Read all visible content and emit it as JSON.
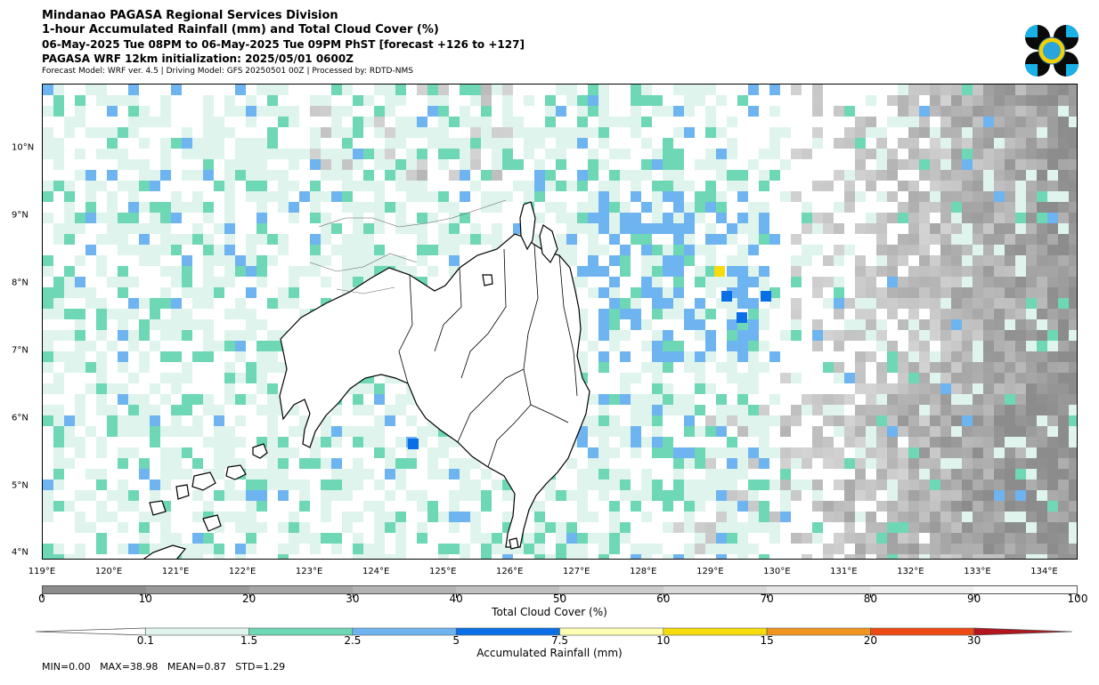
{
  "header": {
    "line1": "Mindanao PAGASA Regional Services Division",
    "line2": "1-hour Accumulated Rainfall (mm) and Total Cloud Cover (%)",
    "line3": "06-May-2025 Tue 08PM to 06-May-2025 Tue 09PM PhST [forecast +126 to +127]",
    "line4": "PAGASA WRF 12km initialization: 2025/05/01 0600Z",
    "line5": "Forecast Model: WRF ver. 4.5 | Driving Model: GFS 20250501 00Z | Processed by: RDTD-NMS"
  },
  "logo": {
    "name": "PAGASA-logo"
  },
  "map": {
    "lon_labels": [
      "119°E",
      "120°E",
      "121°E",
      "122°E",
      "123°E",
      "124°E",
      "125°E",
      "126°E",
      "127°E",
      "128°E",
      "129°E",
      "130°E",
      "131°E",
      "132°E",
      "133°E",
      "134°E"
    ],
    "lat_labels": [
      "10°N",
      "9°N",
      "8°N",
      "7°N",
      "6°N",
      "5°N",
      "4°N"
    ],
    "lon_range": [
      119.0,
      134.5
    ],
    "lat_range": [
      3.9,
      10.95
    ]
  },
  "cloud_cover": {
    "title": "Total Cloud Cover (%)",
    "ticks": [
      "0",
      "10",
      "20",
      "30",
      "40",
      "50",
      "60",
      "70",
      "80",
      "90",
      "100"
    ],
    "colors": [
      "#8c8c8c",
      "#999999",
      "#a6a6a6",
      "#b3b3b3",
      "#bfbfbf",
      "#cccccc",
      "#d9d9d9",
      "#e6e6e6",
      "#f0f0f0",
      "#fafafa"
    ]
  },
  "rainfall": {
    "title": "Accumulated Rainfall (mm)",
    "ticks": [
      "0.1",
      "1.5",
      "2.5",
      "5",
      "7.5",
      "10",
      "15",
      "20",
      "30"
    ],
    "colors": [
      "#dff4ec",
      "#6ed7b5",
      "#6eb4f0",
      "#0a6ee6",
      "#ffffb4",
      "#f5dc0a",
      "#f0961e",
      "#ee4b14",
      "#b4141e"
    ]
  },
  "stats": {
    "text": "MIN=0.00   MAX=38.98   MEAN=0.87   STD=1.29"
  }
}
